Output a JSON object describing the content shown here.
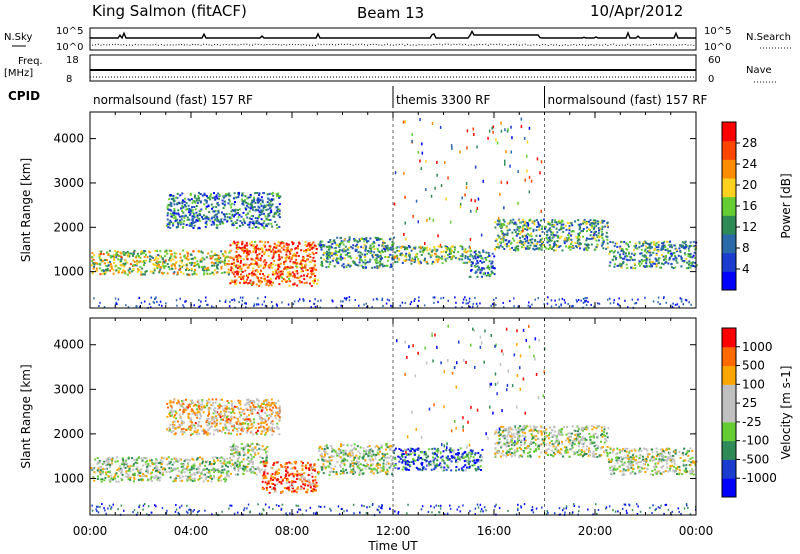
{
  "header": {
    "station": "King Salmon (fitACF)",
    "beam": "Beam 13",
    "date": "10/Apr/2012"
  },
  "side_labels": {
    "nsky": "N.Sky",
    "nsearch": "N.Search",
    "freq": "Freq.",
    "freq_unit": "[MHz]",
    "nave": "Nave",
    "cpid": "CPID"
  },
  "small_panels": {
    "noise_ticks_left": [
      "10^5",
      "10^0"
    ],
    "noise_ticks_right": [
      "10^5",
      "10^0"
    ],
    "freq_ticks_left": [
      "18",
      "8"
    ],
    "nave_ticks_right": [
      "60",
      "0"
    ]
  },
  "cpid_segments": [
    {
      "label": "normalsound (fast) 157 RF",
      "start_hour": 0,
      "end_hour": 12
    },
    {
      "label": "themis 3300 RF",
      "start_hour": 12,
      "end_hour": 18
    },
    {
      "label": "normalsound (fast) 157 RF",
      "start_hour": 18,
      "end_hour": 24
    }
  ],
  "chart_data": [
    {
      "type": "heatmap",
      "xlabel": "Time UT",
      "ylabel": "Slant Range [km]",
      "x_ticks": [
        "00:00",
        "04:00",
        "08:00",
        "12:00",
        "16:00",
        "20:00",
        "00:00"
      ],
      "x_range_hours": [
        0,
        24
      ],
      "y_ticks": [
        1000,
        2000,
        3000,
        4000
      ],
      "ylim": [
        180,
        4600
      ],
      "colorbar": {
        "label": "Power [dB]",
        "ticks": [
          "28",
          "24",
          "20",
          "16",
          "12",
          "8",
          "4"
        ],
        "colors": [
          "#0000ff",
          "#1a3ccf",
          "#2a6aa8",
          "#2e8b57",
          "#66cc33",
          "#ffd21f",
          "#ff8c00",
          "#ff4500",
          "#ff0000"
        ]
      },
      "bands": [
        {
          "t0": 0.0,
          "t1": 5.5,
          "r0": 950,
          "r1": 1500,
          "level": 0.55
        },
        {
          "t0": 5.5,
          "t1": 9.0,
          "r0": 700,
          "r1": 1700,
          "level": 0.8
        },
        {
          "t0": 9.0,
          "t1": 12.0,
          "r0": 1100,
          "r1": 1800,
          "level": 0.35
        },
        {
          "t0": 12.0,
          "t1": 15.0,
          "r0": 1200,
          "r1": 1600,
          "level": 0.45
        },
        {
          "t0": 15.0,
          "t1": 16.0,
          "r0": 900,
          "r1": 1500,
          "level": 0.3
        },
        {
          "t0": 16.0,
          "t1": 20.5,
          "r0": 1500,
          "r1": 2200,
          "level": 0.4
        },
        {
          "t0": 20.5,
          "t1": 24.0,
          "r0": 1100,
          "r1": 1700,
          "level": 0.35
        },
        {
          "t0": 3.0,
          "t1": 7.5,
          "r0": 2000,
          "r1": 2800,
          "level": 0.3
        }
      ]
    },
    {
      "type": "heatmap",
      "xlabel": "Time UT",
      "ylabel": "Slant Range [km]",
      "x_ticks": [
        "00:00",
        "04:00",
        "08:00",
        "12:00",
        "16:00",
        "20:00",
        "00:00"
      ],
      "x_range_hours": [
        0,
        24
      ],
      "y_ticks": [
        1000,
        2000,
        3000,
        4000
      ],
      "ylim": [
        180,
        4600
      ],
      "colorbar": {
        "label": "Velocity [m s-1]",
        "ticks": [
          "1000",
          "500",
          "100",
          "25",
          "-25",
          "-100",
          "-500",
          "-1000"
        ],
        "colors": [
          "#0000ff",
          "#1a3ccf",
          "#2e8b57",
          "#66cc33",
          "#c0c0c0",
          "#c0c0c0",
          "#ffa500",
          "#ff6a00",
          "#ff0000"
        ]
      },
      "bands": [
        {
          "t0": 0.0,
          "t1": 5.5,
          "r0": 950,
          "r1": 1500,
          "level": 0.5
        },
        {
          "t0": 5.5,
          "t1": 7.0,
          "r0": 1100,
          "r1": 1800,
          "level": 0.5
        },
        {
          "t0": 6.8,
          "t1": 9.0,
          "r0": 700,
          "r1": 1400,
          "level": 0.85
        },
        {
          "t0": 9.0,
          "t1": 12.0,
          "r0": 1100,
          "r1": 1800,
          "level": 0.5
        },
        {
          "t0": 12.0,
          "t1": 15.5,
          "r0": 1200,
          "r1": 1700,
          "level": 0.25
        },
        {
          "t0": 16.0,
          "t1": 20.5,
          "r0": 1500,
          "r1": 2200,
          "level": 0.5
        },
        {
          "t0": 20.5,
          "t1": 24.0,
          "r0": 1100,
          "r1": 1700,
          "level": 0.5
        },
        {
          "t0": 3.0,
          "t1": 7.5,
          "r0": 2000,
          "r1": 2800,
          "level": 0.65
        }
      ]
    }
  ]
}
